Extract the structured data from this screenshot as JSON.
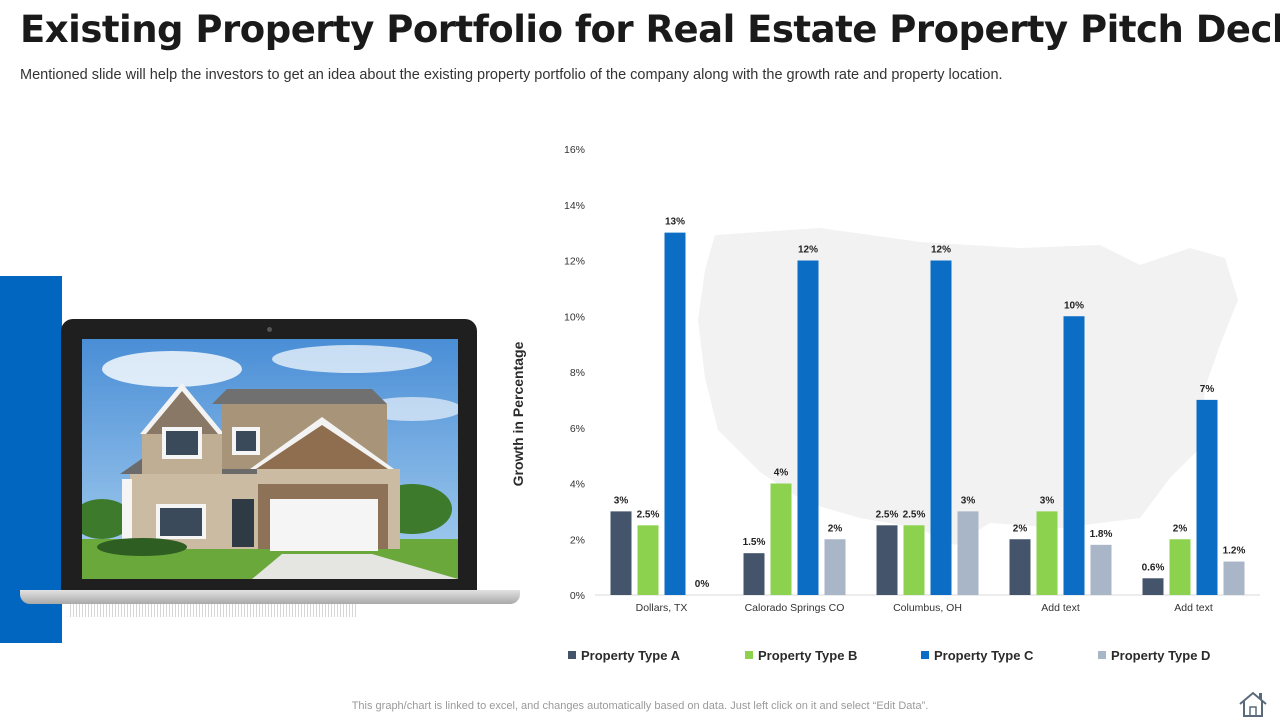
{
  "slide": {
    "title": "Existing Property Portfolio for Real Estate Property Pitch Deck",
    "subtitle": "Mentioned slide will help the investors to get an idea about the existing property portfolio of the company along with the growth rate and property location.",
    "footer": "This graph/chart is linked to excel, and changes automatically based on data. Just left click on it and select “Edit Data”.",
    "home_icon": "house-icon",
    "accent_color": "#0066bf"
  },
  "chart_data": {
    "type": "bar",
    "ylabel": "Growth in Percentage",
    "xlabel": "",
    "ylim": [
      0,
      16
    ],
    "y_ticks": [
      "0%",
      "2%",
      "4%",
      "6%",
      "8%",
      "10%",
      "12%",
      "14%",
      "16%"
    ],
    "categories": [
      "Dollars, TX",
      "Calorado Springs CO",
      "Columbus, OH",
      "Add text",
      "Add text"
    ],
    "series": [
      {
        "name": "Property Type A",
        "color": "#44546a",
        "values": [
          3,
          1.5,
          2.5,
          2,
          0.6
        ],
        "labels": [
          "3%",
          "1.5%",
          "2.5%",
          "2%",
          "0.6%"
        ]
      },
      {
        "name": "Property Type B",
        "color": "#8cd24e",
        "values": [
          2.5,
          4,
          2.5,
          3,
          2
        ],
        "labels": [
          "2.5%",
          "4%",
          "2.5%",
          "3%",
          "2%"
        ]
      },
      {
        "name": "Property Type C",
        "color": "#0b6ec4",
        "values": [
          13,
          12,
          12,
          10,
          7
        ],
        "labels": [
          "13%",
          "12%",
          "12%",
          "10%",
          "7%"
        ]
      },
      {
        "name": "Property Type D",
        "color": "#a9b6c8",
        "values": [
          0,
          2,
          3,
          1.8,
          1.2
        ],
        "labels": [
          "0%",
          "2%",
          "3%",
          "1.8%",
          "1.2%"
        ]
      }
    ],
    "grid": false,
    "legend_position": "bottom"
  }
}
